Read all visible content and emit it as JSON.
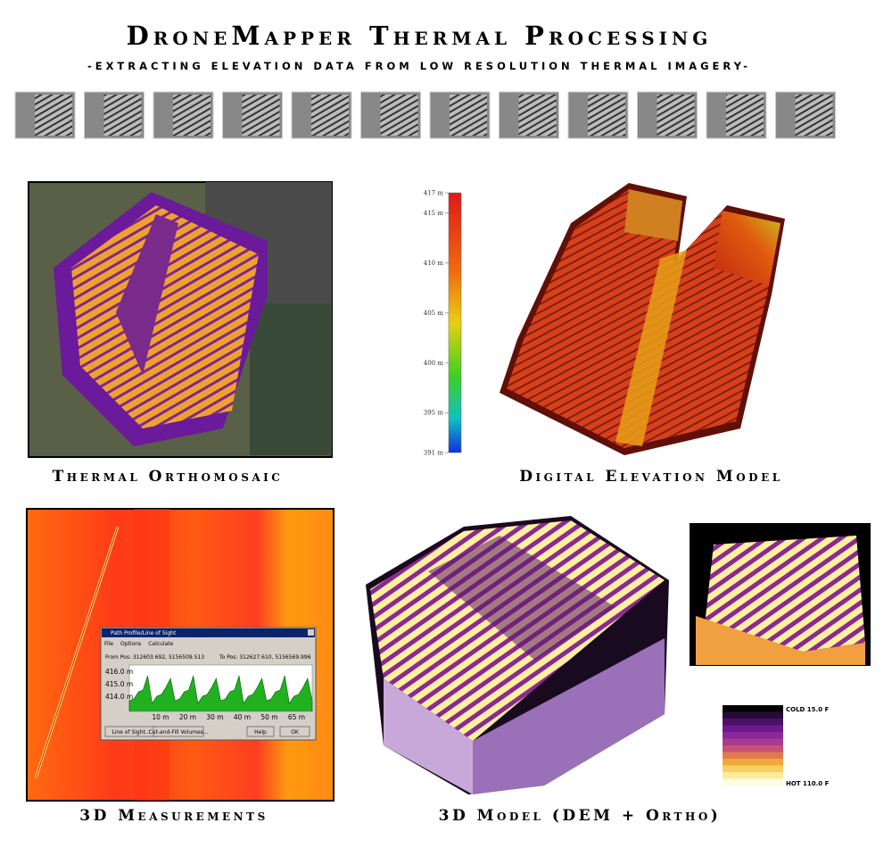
{
  "header": {
    "title": "DroneMapper Thermal Processing",
    "subtitle": "-EXTRACTING ELEVATION DATA FROM LOW RESOLUTION THERMAL IMAGERY-"
  },
  "panels": [
    {
      "caption": "Thermal Orthomosaic"
    },
    {
      "caption": "Digital Elevation Model"
    },
    {
      "caption": "3D Measurements"
    },
    {
      "caption": "3D Model (DEM + Ortho)"
    }
  ],
  "elevation_scale": {
    "ticks": [
      {
        "value": 417,
        "label": "417 m"
      },
      {
        "value": 415,
        "label": "415 m"
      },
      {
        "value": 410,
        "label": "410 m"
      },
      {
        "value": 405,
        "label": "405 m"
      },
      {
        "value": 400,
        "label": "400 m"
      },
      {
        "value": 395,
        "label": "395 m"
      },
      {
        "value": 391,
        "label": "391 m"
      }
    ]
  },
  "thermal_legend": {
    "cold": "COLD 15.0 F",
    "hot": "HOT 110.0 F",
    "colors": [
      "#000000",
      "#2a0a3a",
      "#4a1266",
      "#6a1a8a",
      "#8a2a9a",
      "#a83a90",
      "#c85078",
      "#e07a50",
      "#f0a838",
      "#f8d060",
      "#fcec9a",
      "#fffce0"
    ]
  },
  "dialog": {
    "title": "Path Profile/Line of Sight",
    "menu": [
      "File",
      "Options",
      "Calculate"
    ],
    "from": "From Pos: 312603.692, 5156509.513",
    "to": "To Pos: 312627.610, 5156569.996",
    "y_labels": [
      "416.0 m",
      "415.0 m",
      "414.0 m"
    ],
    "x_labels": [
      "10 m",
      "20 m",
      "30 m",
      "40 m",
      "50 m",
      "65 m"
    ],
    "buttons": [
      "Line of Sight...",
      "Cut-and-Fill Volumes...",
      "Help",
      "OK"
    ]
  }
}
